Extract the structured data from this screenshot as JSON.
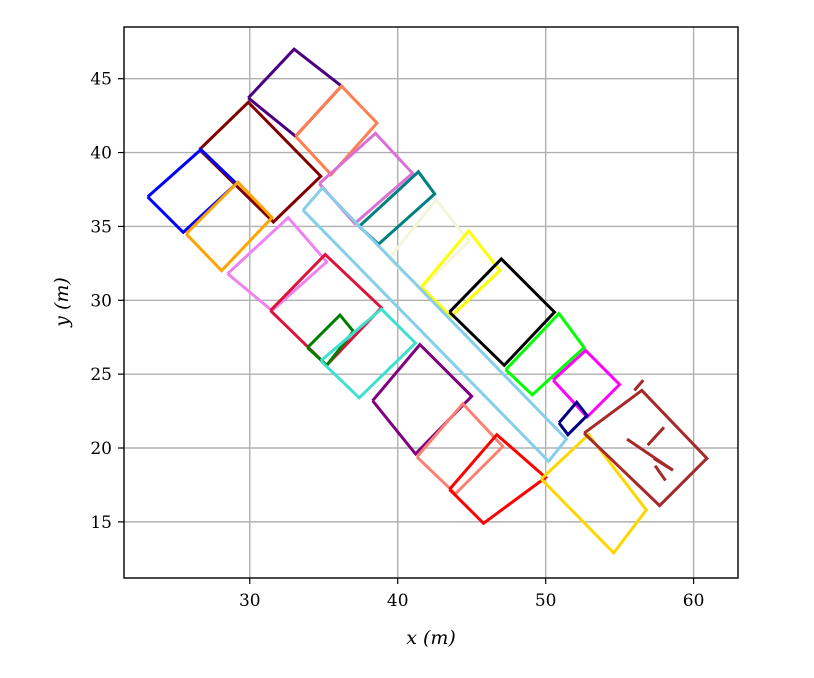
{
  "chart_data": {
    "type": "line",
    "title": "",
    "xlabel": "x (m)",
    "ylabel": "y (m)",
    "xlim": [
      21.5,
      63
    ],
    "ylim": [
      11.2,
      48.5
    ],
    "xticks": [
      30,
      40,
      50,
      60
    ],
    "yticks": [
      15,
      20,
      25,
      30,
      35,
      40,
      45
    ],
    "grid": true,
    "series": [
      {
        "color": "#4b0082",
        "x": [
          29.9,
          33.0,
          36.2,
          33.1,
          29.9
        ],
        "y": [
          43.7,
          47.0,
          44.5,
          41.1,
          43.7
        ]
      },
      {
        "color": "#ff7f50",
        "x": [
          33.1,
          36.2,
          38.6,
          35.5,
          33.1
        ],
        "y": [
          41.1,
          44.5,
          42.0,
          38.5,
          41.1
        ]
      },
      {
        "color": "#800000",
        "x": [
          26.6,
          29.9,
          34.8,
          31.6,
          26.6
        ],
        "y": [
          40.2,
          43.4,
          38.4,
          35.3,
          40.2
        ]
      },
      {
        "color": "#0000ff",
        "x": [
          23.1,
          26.7,
          29.1,
          25.5,
          23.1
        ],
        "y": [
          37.0,
          40.2,
          37.9,
          34.6,
          37.0
        ]
      },
      {
        "color": "#ffa500",
        "x": [
          25.7,
          29.2,
          31.5,
          28.1,
          25.7
        ],
        "y": [
          34.5,
          38.0,
          35.6,
          32.0,
          34.5
        ]
      },
      {
        "color": "#da70d6",
        "x": [
          34.7,
          38.5,
          41.0,
          37.1,
          34.7
        ],
        "y": [
          37.9,
          41.3,
          38.6,
          35.2,
          37.9
        ]
      },
      {
        "color": "#008080",
        "x": [
          37.4,
          41.4,
          42.5,
          38.7,
          37.4
        ],
        "y": [
          35.0,
          38.7,
          37.2,
          33.8,
          35.0
        ]
      },
      {
        "color": "#f5f5dc",
        "x": [
          39.4,
          42.6,
          44.8,
          41.6,
          39.4
        ],
        "y": [
          32.8,
          36.8,
          34.0,
          30.8,
          32.8
        ]
      },
      {
        "color": "#ffff00",
        "x": [
          41.6,
          44.8,
          46.9,
          43.6,
          41.6
        ],
        "y": [
          30.9,
          34.7,
          32.0,
          28.9,
          30.9
        ]
      },
      {
        "color": "#ee82ee",
        "x": [
          28.5,
          32.6,
          35.2,
          31.5,
          28.5
        ],
        "y": [
          31.8,
          35.6,
          32.6,
          29.3,
          31.8
        ]
      },
      {
        "color": "#87ceeb",
        "x": [
          33.6,
          34.9,
          51.4,
          50.2,
          33.6
        ],
        "y": [
          36.1,
          37.6,
          20.6,
          19.1,
          36.1
        ]
      },
      {
        "color": "#000000",
        "x": [
          43.5,
          47.0,
          50.6,
          47.2,
          43.5
        ],
        "y": [
          29.2,
          32.8,
          29.2,
          25.6,
          29.2
        ]
      },
      {
        "color": "#dc143c",
        "x": [
          31.4,
          35.1,
          38.9,
          35.2,
          31.4
        ],
        "y": [
          29.3,
          33.1,
          29.5,
          25.6,
          29.3
        ]
      },
      {
        "color": "#008000",
        "x": [
          33.9,
          36.1,
          37.0,
          35.2,
          33.9
        ],
        "y": [
          26.8,
          29.0,
          27.9,
          25.6,
          26.8
        ]
      },
      {
        "color": "#40e0d0",
        "x": [
          34.8,
          38.9,
          41.2,
          37.4,
          34.8
        ],
        "y": [
          25.9,
          29.4,
          27.1,
          23.4,
          25.9
        ]
      },
      {
        "color": "#800080",
        "x": [
          38.3,
          41.5,
          45.0,
          41.2,
          38.3
        ],
        "y": [
          23.2,
          27.0,
          23.5,
          19.6,
          23.2
        ]
      },
      {
        "color": "#00ff00",
        "x": [
          47.3,
          50.9,
          52.6,
          49.1,
          47.3
        ],
        "y": [
          25.3,
          29.1,
          26.8,
          23.6,
          25.3
        ]
      },
      {
        "color": "#ff00ff",
        "x": [
          50.5,
          52.7,
          55.0,
          52.8,
          50.5
        ],
        "y": [
          24.6,
          26.6,
          24.3,
          22.1,
          24.6
        ]
      },
      {
        "color": "#000080",
        "x": [
          50.9,
          52.1,
          52.8,
          51.5,
          50.9
        ],
        "y": [
          21.7,
          23.1,
          22.2,
          20.9,
          21.7
        ]
      },
      {
        "color": "#fa8072",
        "x": [
          41.3,
          44.4,
          47.1,
          43.9,
          41.3
        ],
        "y": [
          19.4,
          23.0,
          20.1,
          16.9,
          19.4
        ]
      },
      {
        "color": "#ff0000",
        "x": [
          43.5,
          46.7,
          50.0,
          45.8,
          43.5
        ],
        "y": [
          17.2,
          20.9,
          18.0,
          14.9,
          17.2
        ]
      },
      {
        "color": "#ffd700",
        "x": [
          49.7,
          52.9,
          56.8,
          54.6,
          49.7
        ],
        "y": [
          17.9,
          20.9,
          15.8,
          12.9,
          17.9
        ]
      },
      {
        "color": "#a52a2a",
        "x": [
          52.6,
          56.5,
          60.9,
          57.7,
          52.6
        ],
        "y": [
          21.0,
          23.9,
          19.3,
          16.1,
          21.0
        ]
      },
      {
        "color": "#a52a2a",
        "x": [
          56.0,
          56.6
        ],
        "y": [
          23.9,
          24.6
        ]
      },
      {
        "color": "#a52a2a",
        "x": [
          57.3,
          58.6
        ],
        "y": [
          19.3,
          18.5
        ]
      },
      {
        "color": "#a52a2a",
        "x": [
          58.0,
          56.9
        ],
        "y": [
          21.4,
          20.2
        ]
      },
      {
        "color": "#a52a2a",
        "x": [
          55.5,
          58.6
        ],
        "y": [
          20.6,
          18.5
        ]
      },
      {
        "color": "#a52a2a",
        "x": [
          57.4,
          58.1
        ],
        "y": [
          18.8,
          17.8
        ]
      }
    ]
  }
}
